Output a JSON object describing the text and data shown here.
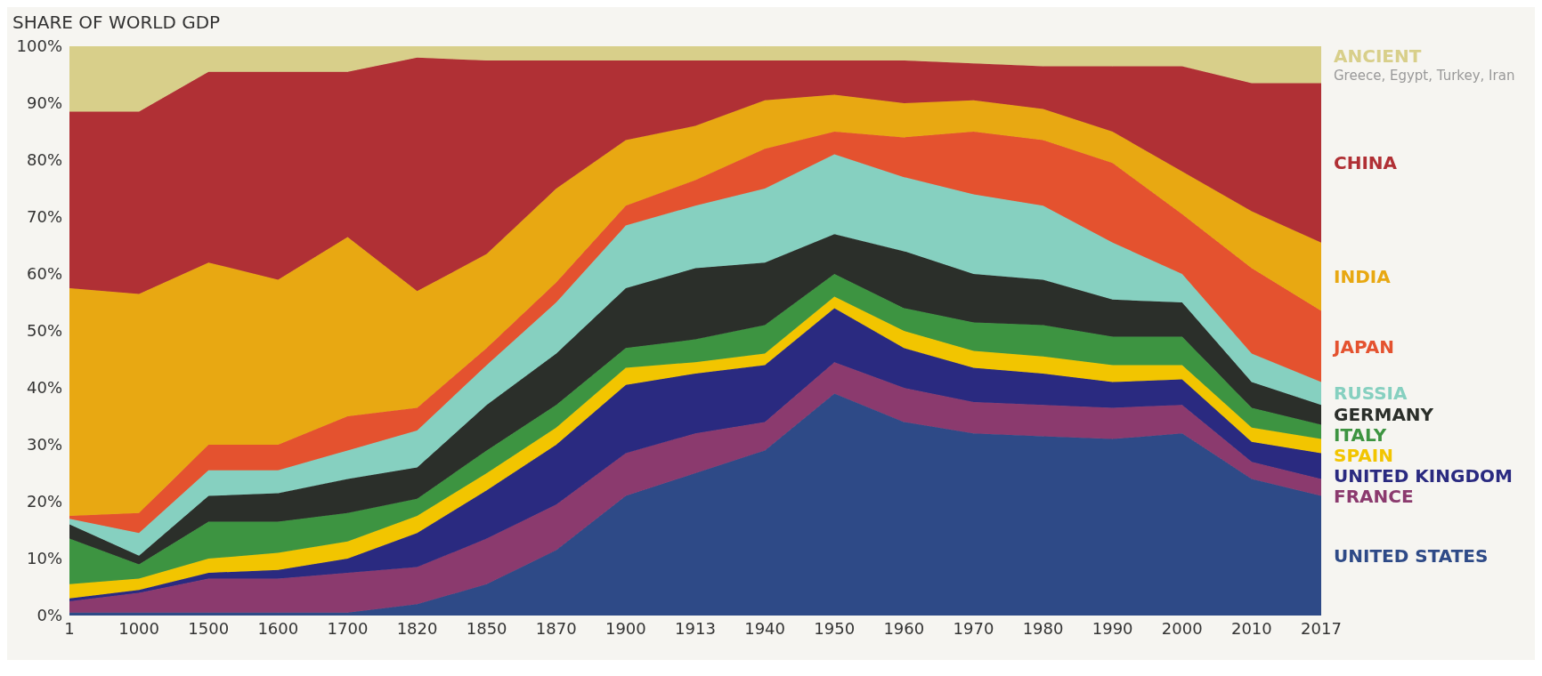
{
  "chart_data": {
    "type": "area",
    "stacked": true,
    "title": "SHARE OF WORLD GDP",
    "categories": [
      "1",
      "1000",
      "1500",
      "1600",
      "1700",
      "1820",
      "1850",
      "1870",
      "1900",
      "1913",
      "1940",
      "1950",
      "1960",
      "1970",
      "1980",
      "1990",
      "2000",
      "2010",
      "2017"
    ],
    "series": [
      {
        "name": "UNITED STATES",
        "color": "#2e4a87",
        "values": [
          0.5,
          0.5,
          0.5,
          0.5,
          0.5,
          2,
          5.5,
          11.5,
          21,
          25,
          29,
          39,
          34,
          32,
          31.5,
          31,
          32,
          24,
          21
        ]
      },
      {
        "name": "FRANCE",
        "color": "#8b3a6e",
        "values": [
          2,
          3.5,
          6,
          6,
          7,
          6.5,
          8,
          8,
          7.5,
          7,
          5,
          5.5,
          6,
          5.5,
          5.5,
          5.5,
          5,
          3,
          3
        ]
      },
      {
        "name": "UNITED KINGDOM",
        "color": "#2a2a80",
        "values": [
          0.5,
          0.5,
          1,
          1.5,
          2.5,
          6,
          8.5,
          10.5,
          12,
          10.5,
          10,
          9.5,
          7,
          6,
          5.5,
          4.5,
          4.5,
          3.5,
          4.5
        ]
      },
      {
        "name": "SPAIN",
        "color": "#f2c500",
        "values": [
          2.5,
          2,
          2.5,
          3,
          3,
          3,
          3,
          3,
          3,
          2,
          2,
          2,
          3,
          3,
          3,
          3,
          2.5,
          2.5,
          2.5
        ]
      },
      {
        "name": "ITALY",
        "color": "#3d9441",
        "values": [
          8,
          2.5,
          6.5,
          5.5,
          5,
          3,
          4,
          4,
          3.5,
          4,
          5,
          4,
          4,
          5,
          5.5,
          5,
          5,
          3.5,
          2.5
        ]
      },
      {
        "name": "GERMANY",
        "color": "#2b2f2a",
        "values": [
          2.5,
          1.5,
          4.5,
          5,
          6,
          5.5,
          8,
          9,
          10.5,
          12.5,
          11,
          7,
          10,
          8.5,
          8,
          6.5,
          6,
          4.5,
          3.5
        ]
      },
      {
        "name": "RUSSIA",
        "color": "#86d0c0",
        "values": [
          1,
          4,
          4.5,
          4,
          5,
          6.5,
          7,
          9,
          11,
          11,
          13,
          14,
          13,
          14,
          13,
          10,
          5,
          5,
          4
        ]
      },
      {
        "name": "JAPAN",
        "color": "#e4522f",
        "values": [
          0.5,
          3.5,
          4.5,
          4.5,
          6,
          4,
          3,
          3.5,
          3.5,
          4.5,
          7,
          4,
          7,
          11,
          11.5,
          14,
          10.5,
          15,
          12.5
        ]
      },
      {
        "name": "INDIA",
        "color": "#e8a812",
        "values": [
          40,
          38.5,
          32,
          29,
          31.5,
          20.5,
          16.5,
          16.5,
          11.5,
          9.5,
          8.5,
          6.5,
          6,
          5.5,
          5.5,
          5.5,
          7.5,
          10,
          12
        ]
      },
      {
        "name": "CHINA",
        "color": "#b03035",
        "values": [
          31,
          32,
          33.5,
          36.5,
          29,
          41,
          34,
          22.5,
          14,
          11.5,
          7,
          6,
          7.5,
          6.5,
          7.5,
          11.5,
          18.5,
          22.5,
          28
        ]
      },
      {
        "name": "ANCIENT",
        "color": "#d8cf8a",
        "values": [
          11.5,
          11.5,
          4.5,
          4.5,
          4.5,
          2,
          2.5,
          2.5,
          2.5,
          2.5,
          2.5,
          2.5,
          2.5,
          3,
          3.5,
          3.5,
          3.5,
          6.5,
          6.5
        ]
      }
    ],
    "annotations": [
      "Greece, Egypt, Turkey, Iran"
    ],
    "ylim": [
      0,
      100
    ],
    "yticks": [
      {
        "value": 0,
        "label": "0%"
      },
      {
        "value": 10,
        "label": "10%"
      },
      {
        "value": 20,
        "label": "20%"
      },
      {
        "value": 30,
        "label": "30%"
      },
      {
        "value": 40,
        "label": "40%"
      },
      {
        "value": 50,
        "label": "50%"
      },
      {
        "value": 60,
        "label": "60%"
      },
      {
        "value": 70,
        "label": "70%"
      },
      {
        "value": 80,
        "label": "80%"
      },
      {
        "value": 90,
        "label": "90%"
      },
      {
        "value": 100,
        "label": "100%"
      }
    ],
    "grid": false
  }
}
